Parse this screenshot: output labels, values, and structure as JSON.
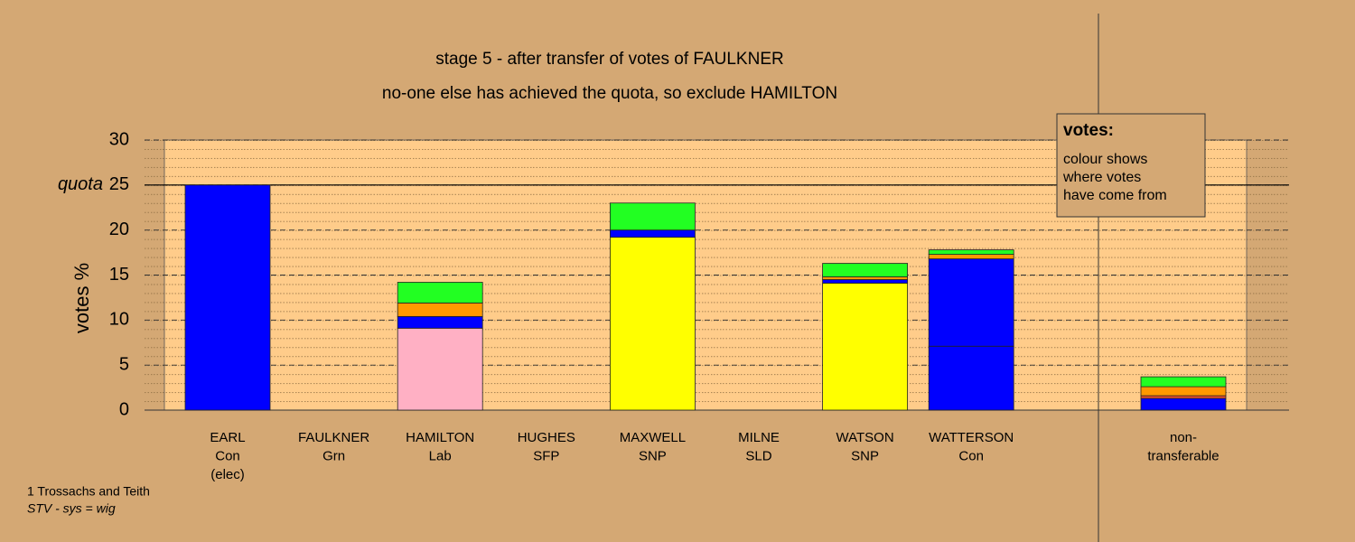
{
  "chart_data": {
    "type": "bar",
    "stacked": true,
    "title": "stage 5 - after transfer of votes of FAULKNER",
    "subtitle": "no-one else has achieved the quota, so exclude HAMILTON",
    "ylabel": "votes %",
    "categories": [
      [
        "EARL",
        "Con",
        "(elec)"
      ],
      [
        "FAULKNER",
        "Grn"
      ],
      [
        "HAMILTON",
        "Lab"
      ],
      [
        "HUGHES",
        "SFP"
      ],
      [
        "MAXWELL",
        "SNP"
      ],
      [
        "MILNE",
        "SLD"
      ],
      [
        "WATSON",
        "SNP"
      ],
      [
        "WATTERSON",
        "Con"
      ],
      [
        "non-",
        "transferable"
      ]
    ],
    "series": [
      {
        "color": "#0000ff",
        "values": [
          25,
          0,
          0,
          0,
          0,
          0,
          0,
          7.1,
          0
        ]
      },
      {
        "color": "#ffb0c4",
        "values": [
          0,
          0,
          9.1,
          0,
          0,
          0,
          0,
          0,
          0
        ]
      },
      {
        "color": "#ffff00",
        "values": [
          0,
          0,
          0,
          0,
          19.2,
          0,
          14.1,
          0,
          0
        ]
      },
      {
        "color": "#0000ff",
        "values": [
          0,
          0,
          1.3,
          0,
          0.8,
          0,
          0.4,
          9.7,
          1.3
        ]
      },
      {
        "color": "#e8502a",
        "values": [
          0,
          0,
          0,
          0,
          0,
          0,
          0,
          0,
          0.3
        ]
      },
      {
        "color": "#ff9900",
        "values": [
          0,
          0,
          1.5,
          0,
          0,
          0,
          0.3,
          0.5,
          1.0
        ]
      },
      {
        "color": "#22ff22",
        "values": [
          0,
          0,
          2.3,
          0,
          3.0,
          0,
          1.5,
          0.5,
          1.1
        ]
      }
    ],
    "ylim": [
      0,
      30
    ],
    "yticks": [
      0,
      5,
      10,
      15,
      20,
      25,
      30
    ],
    "grid": true,
    "quota": 25,
    "quota_label": "quota",
    "legend": {
      "title": "votes:",
      "lines": [
        "colour shows",
        "where votes",
        "have come from"
      ]
    },
    "footer": [
      "1 Trossachs and Teith",
      "STV - sys = wig"
    ]
  }
}
